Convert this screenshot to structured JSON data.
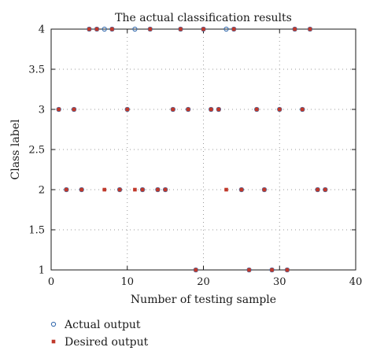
{
  "chart_data": {
    "type": "scatter",
    "title": "The actual classification results",
    "xlabel": "Number of testing sample",
    "ylabel": "Class label",
    "xlim": [
      0,
      40
    ],
    "ylim": [
      1,
      4
    ],
    "xticks": [
      "0",
      "10",
      "20",
      "30",
      "40"
    ],
    "yticks": [
      "1",
      "1.5",
      "2",
      "2.5",
      "3",
      "3.5",
      "4"
    ],
    "grid": true,
    "legend_position": "bottom-left",
    "series": [
      {
        "name": "Actual output",
        "marker": "open-circle",
        "color": "#3a6fb0",
        "points": [
          {
            "x": 1,
            "y": 3
          },
          {
            "x": 2,
            "y": 2
          },
          {
            "x": 3,
            "y": 3
          },
          {
            "x": 4,
            "y": 2
          },
          {
            "x": 5,
            "y": 4
          },
          {
            "x": 6,
            "y": 4
          },
          {
            "x": 7,
            "y": 4
          },
          {
            "x": 8,
            "y": 4
          },
          {
            "x": 9,
            "y": 2
          },
          {
            "x": 10,
            "y": 3
          },
          {
            "x": 11,
            "y": 4
          },
          {
            "x": 12,
            "y": 2
          },
          {
            "x": 13,
            "y": 4
          },
          {
            "x": 14,
            "y": 2
          },
          {
            "x": 15,
            "y": 2
          },
          {
            "x": 16,
            "y": 3
          },
          {
            "x": 17,
            "y": 4
          },
          {
            "x": 18,
            "y": 3
          },
          {
            "x": 19,
            "y": 1
          },
          {
            "x": 20,
            "y": 4
          },
          {
            "x": 21,
            "y": 3
          },
          {
            "x": 22,
            "y": 3
          },
          {
            "x": 23,
            "y": 4
          },
          {
            "x": 24,
            "y": 4
          },
          {
            "x": 25,
            "y": 2
          },
          {
            "x": 26,
            "y": 1
          },
          {
            "x": 27,
            "y": 3
          },
          {
            "x": 28,
            "y": 2
          },
          {
            "x": 29,
            "y": 1
          },
          {
            "x": 30,
            "y": 3
          },
          {
            "x": 31,
            "y": 1
          },
          {
            "x": 32,
            "y": 4
          },
          {
            "x": 33,
            "y": 3
          },
          {
            "x": 34,
            "y": 4
          },
          {
            "x": 35,
            "y": 2
          },
          {
            "x": 36,
            "y": 2
          }
        ]
      },
      {
        "name": "Desired output",
        "marker": "filled-square",
        "color": "#c0392b",
        "points": [
          {
            "x": 1,
            "y": 3
          },
          {
            "x": 2,
            "y": 2
          },
          {
            "x": 3,
            "y": 3
          },
          {
            "x": 4,
            "y": 2
          },
          {
            "x": 5,
            "y": 4
          },
          {
            "x": 6,
            "y": 4
          },
          {
            "x": 7,
            "y": 2
          },
          {
            "x": 8,
            "y": 4
          },
          {
            "x": 9,
            "y": 2
          },
          {
            "x": 10,
            "y": 3
          },
          {
            "x": 11,
            "y": 2
          },
          {
            "x": 12,
            "y": 2
          },
          {
            "x": 13,
            "y": 4
          },
          {
            "x": 14,
            "y": 2
          },
          {
            "x": 15,
            "y": 2
          },
          {
            "x": 16,
            "y": 3
          },
          {
            "x": 17,
            "y": 4
          },
          {
            "x": 18,
            "y": 3
          },
          {
            "x": 19,
            "y": 1
          },
          {
            "x": 20,
            "y": 4
          },
          {
            "x": 21,
            "y": 3
          },
          {
            "x": 22,
            "y": 3
          },
          {
            "x": 23,
            "y": 2
          },
          {
            "x": 24,
            "y": 4
          },
          {
            "x": 25,
            "y": 2
          },
          {
            "x": 26,
            "y": 1
          },
          {
            "x": 27,
            "y": 3
          },
          {
            "x": 28,
            "y": 2
          },
          {
            "x": 29,
            "y": 1
          },
          {
            "x": 30,
            "y": 3
          },
          {
            "x": 31,
            "y": 1
          },
          {
            "x": 32,
            "y": 4
          },
          {
            "x": 33,
            "y": 3
          },
          {
            "x": 34,
            "y": 4
          },
          {
            "x": 35,
            "y": 2
          },
          {
            "x": 36,
            "y": 2
          }
        ]
      }
    ]
  }
}
